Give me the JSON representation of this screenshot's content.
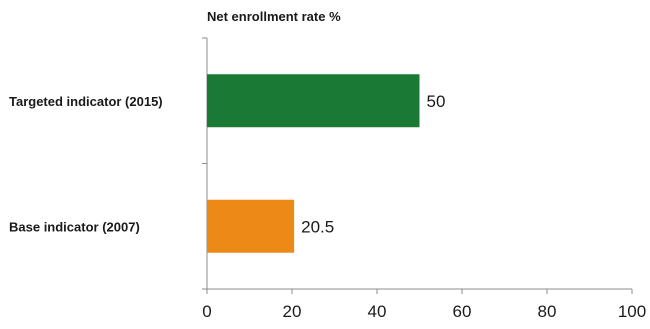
{
  "chart_data": {
    "type": "bar",
    "orientation": "horizontal",
    "title": "Net enrollment rate %",
    "categories": [
      "Targeted indicator (2015)",
      "Base indicator (2007)"
    ],
    "values": [
      50,
      20.5
    ],
    "value_labels": [
      "50",
      "20.5"
    ],
    "colors": [
      "#1a7a35",
      "#ec8a17"
    ],
    "xlim": [
      0,
      100
    ],
    "xticks": [
      0,
      20,
      40,
      60,
      80,
      100
    ],
    "xtick_labels": [
      "0",
      "20",
      "40",
      "60",
      "80",
      "100"
    ],
    "grid": false,
    "legend": "none"
  }
}
